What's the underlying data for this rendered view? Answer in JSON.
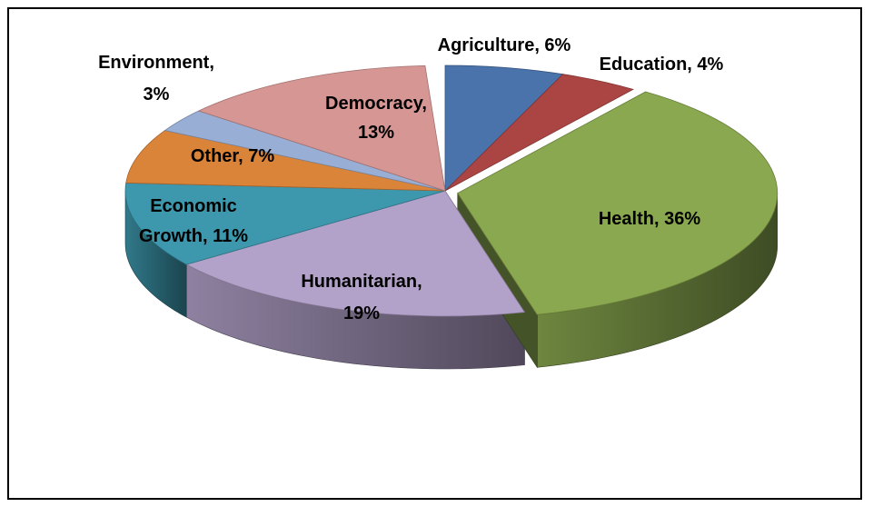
{
  "chart_data": {
    "type": "pie",
    "style": "3d-exploded",
    "title": "",
    "slices": [
      {
        "label": "Agriculture",
        "percent": 6,
        "text": "Agriculture, 6%",
        "color": "#4A73AB"
      },
      {
        "label": "Education",
        "percent": 4,
        "text": "Education, 4%",
        "color": "#AA4543"
      },
      {
        "label": "Health",
        "percent": 36,
        "text": "Health, 36%",
        "color": "#8AA84F"
      },
      {
        "label": "Humanitarian",
        "percent": 19,
        "text": "Humanitarian, 19%",
        "color": "#B2A1C9"
      },
      {
        "label": "Economic Growth",
        "percent": 11,
        "text": "Economic Growth, 11%",
        "color": "#3D97AD"
      },
      {
        "label": "Other",
        "percent": 7,
        "text": "Other, 7%",
        "color": "#DA843A"
      },
      {
        "label": "Environment",
        "percent": 3,
        "text": "Environment, 3%",
        "color": "#98AED4"
      },
      {
        "label": "Democracy",
        "percent": 13,
        "text": "Democracy, 13%",
        "color": "#D59694"
      }
    ]
  }
}
